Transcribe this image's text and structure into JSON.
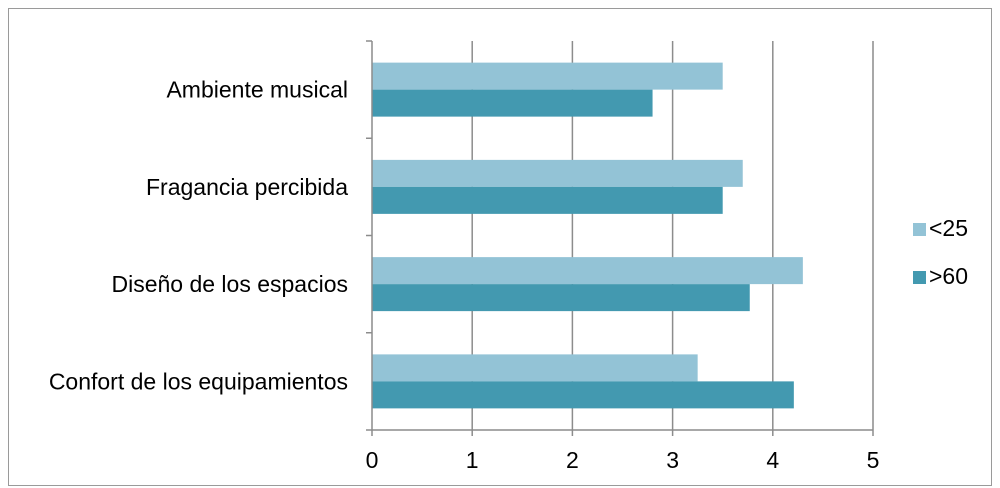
{
  "chart_data": {
    "type": "bar",
    "orientation": "horizontal",
    "categories": [
      "Ambiente musical",
      "Fragancia percibida",
      "Diseño de los espacios",
      "Confort de los equipamientos"
    ],
    "series": [
      {
        "name": "<25",
        "values": [
          3.5,
          3.7,
          4.3,
          3.25
        ],
        "color": "#93c3d6"
      },
      {
        "name": ">60",
        "values": [
          2.8,
          3.5,
          3.77,
          4.21
        ],
        "color": "#4399b0"
      }
    ],
    "xlim": [
      0,
      5
    ],
    "xticks": [
      "0",
      "1",
      "2",
      "3",
      "4",
      "5"
    ],
    "grid": "vertical",
    "legend": "right"
  }
}
